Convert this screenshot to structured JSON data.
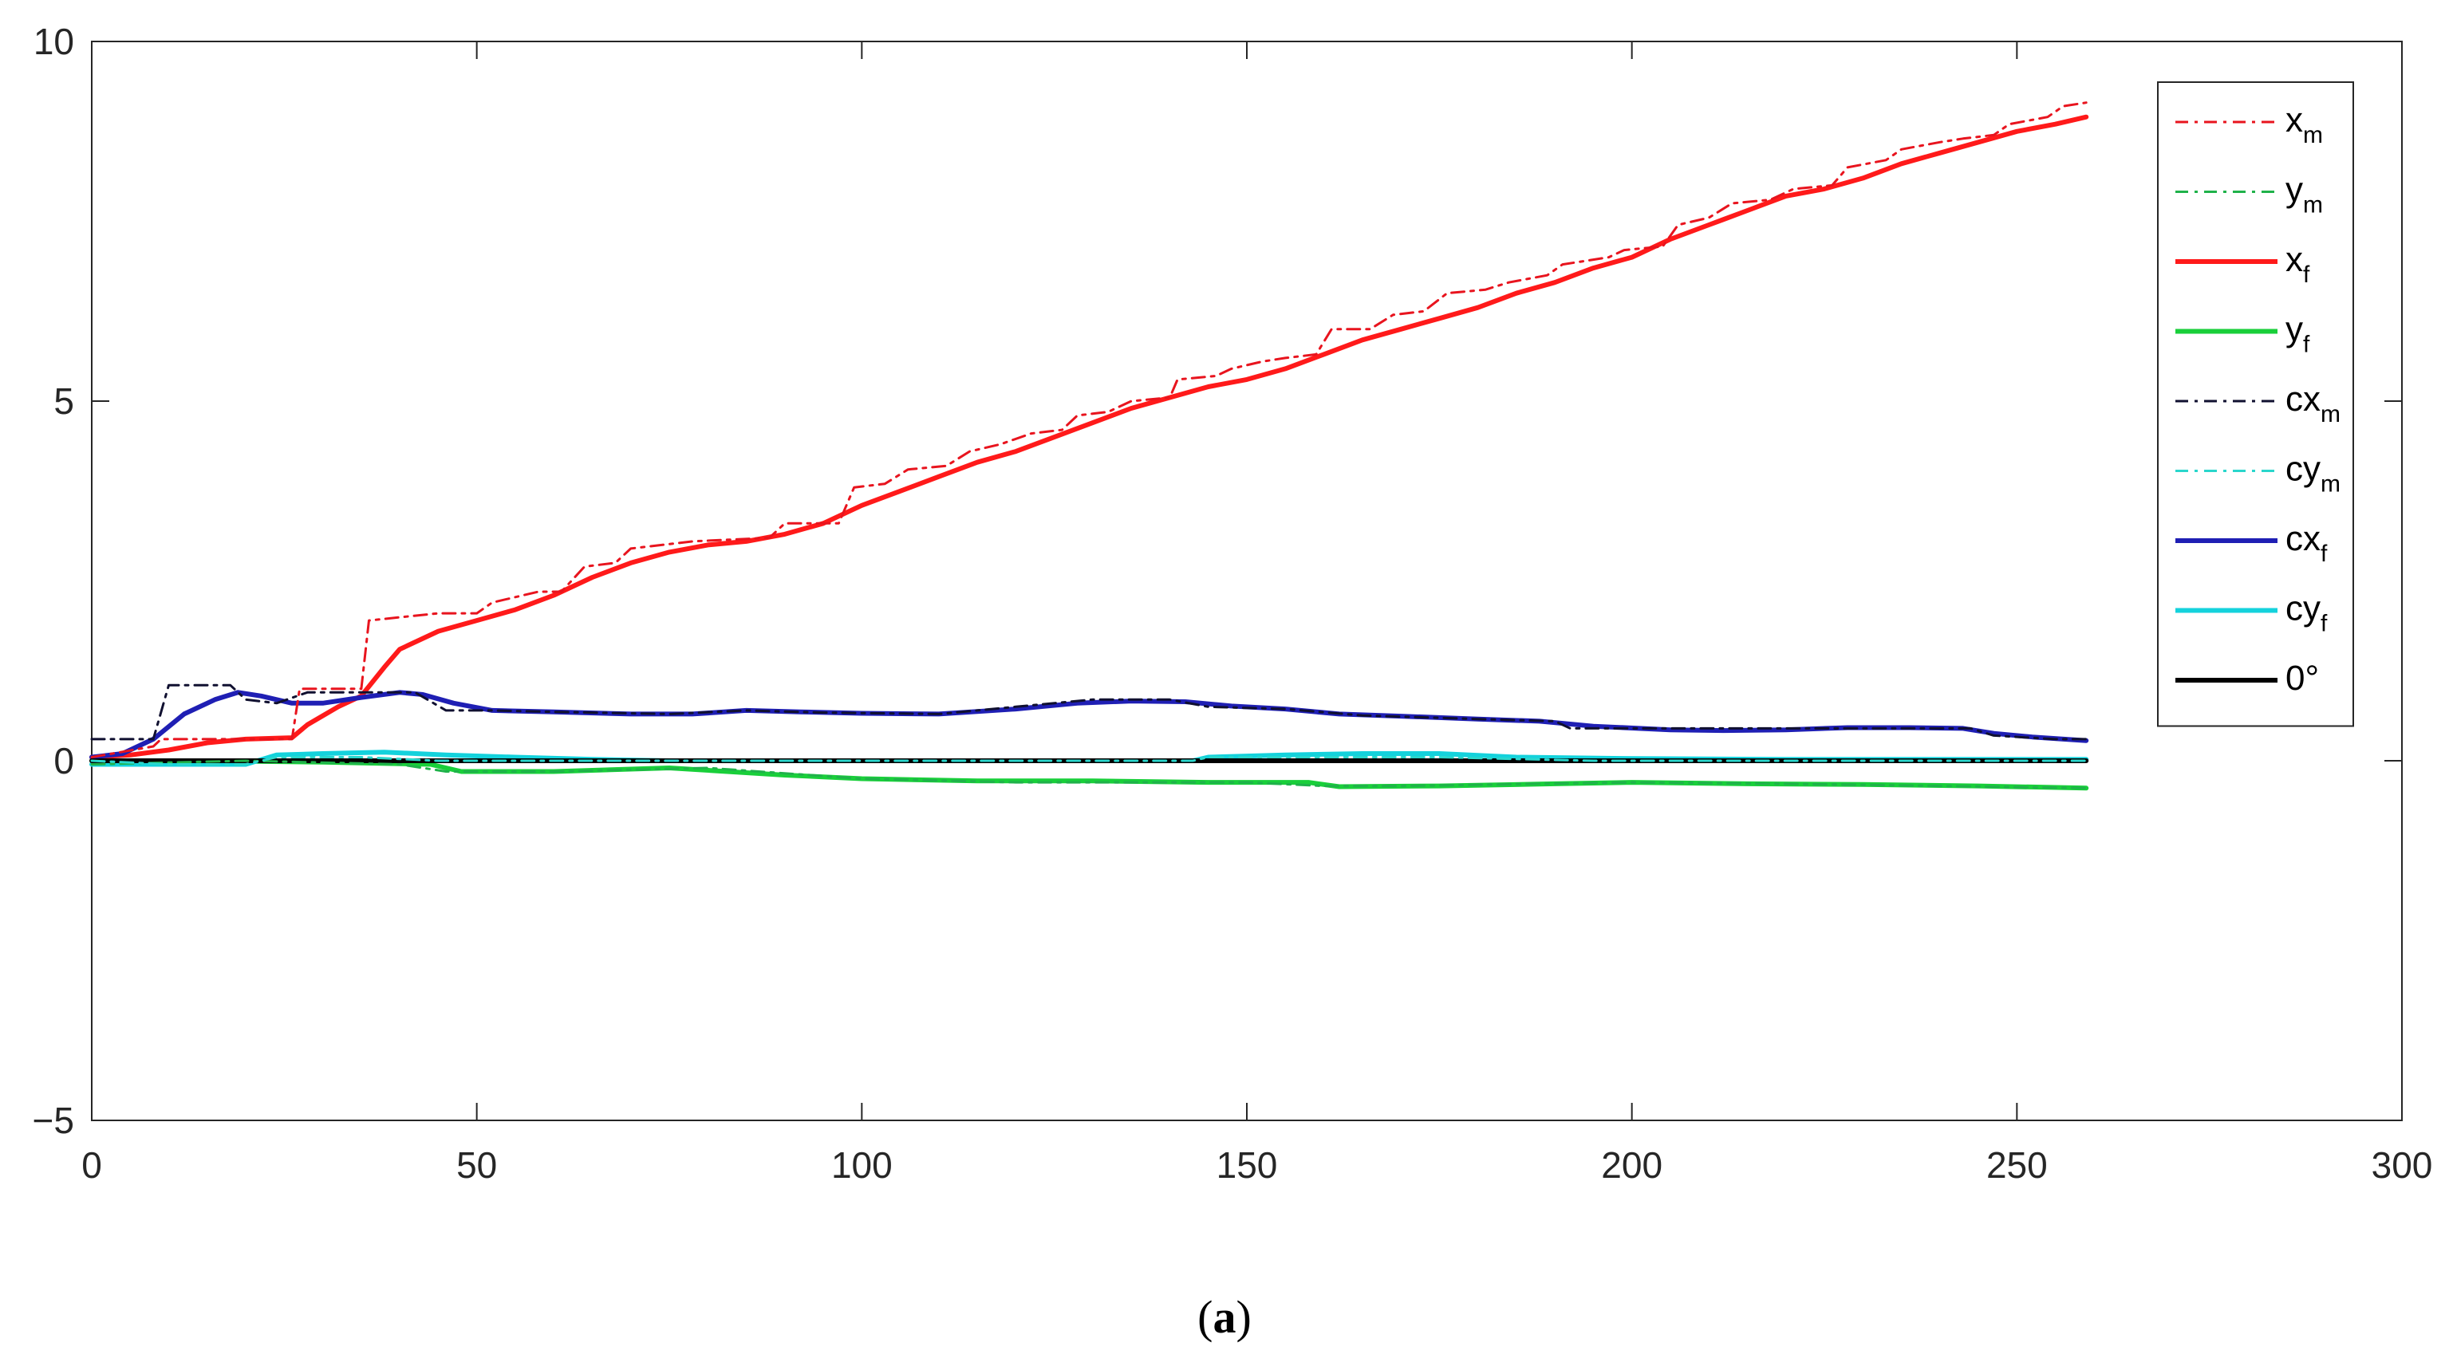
{
  "chart_data": {
    "type": "line",
    "xlim": [
      0,
      300
    ],
    "ylim": [
      -5,
      10
    ],
    "xticks": [
      0,
      50,
      100,
      150,
      200,
      250,
      300
    ],
    "yticks": [
      -5,
      0,
      5,
      10
    ],
    "grid": false,
    "legend_position": "top-right",
    "series": [
      {
        "name": "x",
        "subscript": "m",
        "color": "#e8141e",
        "style": "dashdot",
        "width": "thin",
        "points": [
          [
            0,
            0.05
          ],
          [
            8,
            0.2
          ],
          [
            9,
            0.3
          ],
          [
            18,
            0.3
          ],
          [
            26,
            0.3
          ],
          [
            27,
            1.0
          ],
          [
            35,
            1.0
          ],
          [
            36,
            1.95
          ],
          [
            45,
            2.05
          ],
          [
            50,
            2.05
          ],
          [
            52,
            2.2
          ],
          [
            58,
            2.35
          ],
          [
            61,
            2.35
          ],
          [
            64,
            2.7
          ],
          [
            68,
            2.75
          ],
          [
            70,
            2.95
          ],
          [
            78,
            3.05
          ],
          [
            88,
            3.1
          ],
          [
            90,
            3.3
          ],
          [
            97,
            3.3
          ],
          [
            99,
            3.8
          ],
          [
            103,
            3.85
          ],
          [
            106,
            4.05
          ],
          [
            111,
            4.1
          ],
          [
            114,
            4.3
          ],
          [
            118,
            4.4
          ],
          [
            122,
            4.55
          ],
          [
            126,
            4.6
          ],
          [
            128,
            4.8
          ],
          [
            132,
            4.85
          ],
          [
            135,
            5.0
          ],
          [
            140,
            5.05
          ],
          [
            141,
            5.3
          ],
          [
            146,
            5.35
          ],
          [
            148,
            5.45
          ],
          [
            152,
            5.55
          ],
          [
            155,
            5.6
          ],
          [
            159,
            5.65
          ],
          [
            161,
            6.0
          ],
          [
            166,
            6.0
          ],
          [
            169,
            6.2
          ],
          [
            173,
            6.25
          ],
          [
            176,
            6.5
          ],
          [
            181,
            6.55
          ],
          [
            184,
            6.65
          ],
          [
            189,
            6.75
          ],
          [
            191,
            6.9
          ],
          [
            197,
            7.0
          ],
          [
            199,
            7.1
          ],
          [
            204,
            7.15
          ],
          [
            206,
            7.45
          ],
          [
            210,
            7.55
          ],
          [
            213,
            7.75
          ],
          [
            218,
            7.8
          ],
          [
            221,
            7.95
          ],
          [
            226,
            8.0
          ],
          [
            228,
            8.25
          ],
          [
            233,
            8.35
          ],
          [
            235,
            8.5
          ],
          [
            240,
            8.6
          ],
          [
            243,
            8.65
          ],
          [
            247,
            8.7
          ],
          [
            249,
            8.85
          ],
          [
            254,
            8.95
          ],
          [
            256,
            9.1
          ],
          [
            259,
            9.15
          ]
        ]
      },
      {
        "name": "y",
        "subscript": "m",
        "color": "#1fb24a",
        "style": "dashdot",
        "width": "thin",
        "points": [
          [
            0,
            -0.05
          ],
          [
            20,
            0.0
          ],
          [
            40,
            -0.05
          ],
          [
            46,
            -0.15
          ],
          [
            60,
            -0.15
          ],
          [
            80,
            -0.1
          ],
          [
            100,
            -0.25
          ],
          [
            120,
            -0.3
          ],
          [
            150,
            -0.3
          ],
          [
            160,
            -0.35
          ],
          [
            170,
            -0.35
          ],
          [
            200,
            -0.3
          ],
          [
            220,
            -0.32
          ],
          [
            240,
            -0.35
          ],
          [
            259,
            -0.38
          ]
        ]
      },
      {
        "name": "x",
        "subscript": "f",
        "color": "#ff1a1a",
        "style": "solid",
        "width": "thick",
        "points": [
          [
            0,
            0.05
          ],
          [
            5,
            0.08
          ],
          [
            10,
            0.15
          ],
          [
            15,
            0.25
          ],
          [
            20,
            0.3
          ],
          [
            26,
            0.32
          ],
          [
            28,
            0.5
          ],
          [
            32,
            0.75
          ],
          [
            35,
            0.9
          ],
          [
            38,
            1.3
          ],
          [
            40,
            1.55
          ],
          [
            45,
            1.8
          ],
          [
            50,
            1.95
          ],
          [
            55,
            2.1
          ],
          [
            60,
            2.3
          ],
          [
            65,
            2.55
          ],
          [
            70,
            2.75
          ],
          [
            75,
            2.9
          ],
          [
            80,
            3.0
          ],
          [
            85,
            3.05
          ],
          [
            90,
            3.15
          ],
          [
            95,
            3.3
          ],
          [
            100,
            3.55
          ],
          [
            105,
            3.75
          ],
          [
            110,
            3.95
          ],
          [
            115,
            4.15
          ],
          [
            120,
            4.3
          ],
          [
            125,
            4.5
          ],
          [
            130,
            4.7
          ],
          [
            135,
            4.9
          ],
          [
            140,
            5.05
          ],
          [
            145,
            5.2
          ],
          [
            150,
            5.3
          ],
          [
            155,
            5.45
          ],
          [
            160,
            5.65
          ],
          [
            165,
            5.85
          ],
          [
            170,
            6.0
          ],
          [
            175,
            6.15
          ],
          [
            180,
            6.3
          ],
          [
            185,
            6.5
          ],
          [
            190,
            6.65
          ],
          [
            195,
            6.85
          ],
          [
            200,
            7.0
          ],
          [
            205,
            7.25
          ],
          [
            210,
            7.45
          ],
          [
            215,
            7.65
          ],
          [
            220,
            7.85
          ],
          [
            225,
            7.95
          ],
          [
            230,
            8.1
          ],
          [
            235,
            8.3
          ],
          [
            240,
            8.45
          ],
          [
            245,
            8.6
          ],
          [
            250,
            8.75
          ],
          [
            255,
            8.85
          ],
          [
            259,
            8.95
          ]
        ]
      },
      {
        "name": "y",
        "subscript": "f",
        "color": "#19cf3a",
        "style": "solid",
        "width": "thick",
        "points": [
          [
            0,
            0.0
          ],
          [
            15,
            0.0
          ],
          [
            30,
            -0.02
          ],
          [
            44,
            -0.05
          ],
          [
            48,
            -0.15
          ],
          [
            60,
            -0.15
          ],
          [
            75,
            -0.1
          ],
          [
            90,
            -0.2
          ],
          [
            100,
            -0.25
          ],
          [
            115,
            -0.28
          ],
          [
            130,
            -0.28
          ],
          [
            145,
            -0.3
          ],
          [
            158,
            -0.3
          ],
          [
            162,
            -0.36
          ],
          [
            175,
            -0.35
          ],
          [
            190,
            -0.32
          ],
          [
            200,
            -0.3
          ],
          [
            215,
            -0.32
          ],
          [
            230,
            -0.33
          ],
          [
            245,
            -0.35
          ],
          [
            259,
            -0.38
          ]
        ]
      },
      {
        "name": "cx",
        "subscript": "m",
        "color": "#101030",
        "style": "dashdot",
        "width": "thin",
        "points": [
          [
            0,
            0.3
          ],
          [
            8,
            0.3
          ],
          [
            10,
            1.05
          ],
          [
            18,
            1.05
          ],
          [
            20,
            0.85
          ],
          [
            24,
            0.8
          ],
          [
            28,
            0.95
          ],
          [
            35,
            0.95
          ],
          [
            42,
            0.95
          ],
          [
            46,
            0.7
          ],
          [
            52,
            0.7
          ],
          [
            60,
            0.68
          ],
          [
            75,
            0.65
          ],
          [
            85,
            0.7
          ],
          [
            95,
            0.67
          ],
          [
            110,
            0.65
          ],
          [
            120,
            0.75
          ],
          [
            130,
            0.85
          ],
          [
            140,
            0.85
          ],
          [
            145,
            0.75
          ],
          [
            155,
            0.72
          ],
          [
            165,
            0.63
          ],
          [
            180,
            0.58
          ],
          [
            190,
            0.55
          ],
          [
            192,
            0.45
          ],
          [
            205,
            0.45
          ],
          [
            215,
            0.45
          ],
          [
            230,
            0.45
          ],
          [
            244,
            0.45
          ],
          [
            247,
            0.35
          ],
          [
            255,
            0.3
          ],
          [
            259,
            0.3
          ]
        ]
      },
      {
        "name": "cy",
        "subscript": "m",
        "color": "#2ad6cc",
        "style": "dashdot",
        "width": "thin",
        "points": [
          [
            0,
            0.0
          ],
          [
            10,
            -0.05
          ],
          [
            20,
            -0.05
          ],
          [
            24,
            0.05
          ],
          [
            35,
            0.05
          ],
          [
            45,
            0.0
          ],
          [
            60,
            0.0
          ],
          [
            80,
            0.0
          ],
          [
            100,
            0.0
          ],
          [
            120,
            0.0
          ],
          [
            143,
            0.0
          ],
          [
            145,
            0.05
          ],
          [
            160,
            0.05
          ],
          [
            175,
            0.05
          ],
          [
            195,
            0.0
          ],
          [
            220,
            0.0
          ],
          [
            245,
            0.0
          ],
          [
            259,
            0.0
          ]
        ]
      },
      {
        "name": "cx",
        "subscript": "f",
        "color": "#1f1fb4",
        "style": "solid",
        "width": "thick",
        "points": [
          [
            0,
            0.05
          ],
          [
            4,
            0.1
          ],
          [
            8,
            0.3
          ],
          [
            12,
            0.65
          ],
          [
            16,
            0.85
          ],
          [
            19,
            0.95
          ],
          [
            22,
            0.9
          ],
          [
            26,
            0.8
          ],
          [
            30,
            0.8
          ],
          [
            35,
            0.88
          ],
          [
            40,
            0.95
          ],
          [
            43,
            0.92
          ],
          [
            47,
            0.8
          ],
          [
            52,
            0.7
          ],
          [
            60,
            0.68
          ],
          [
            70,
            0.65
          ],
          [
            78,
            0.65
          ],
          [
            85,
            0.7
          ],
          [
            92,
            0.68
          ],
          [
            100,
            0.66
          ],
          [
            110,
            0.65
          ],
          [
            120,
            0.72
          ],
          [
            128,
            0.8
          ],
          [
            135,
            0.83
          ],
          [
            142,
            0.82
          ],
          [
            148,
            0.76
          ],
          [
            155,
            0.72
          ],
          [
            162,
            0.65
          ],
          [
            170,
            0.62
          ],
          [
            180,
            0.58
          ],
          [
            188,
            0.55
          ],
          [
            195,
            0.48
          ],
          [
            205,
            0.43
          ],
          [
            212,
            0.42
          ],
          [
            220,
            0.43
          ],
          [
            228,
            0.46
          ],
          [
            236,
            0.46
          ],
          [
            243,
            0.45
          ],
          [
            247,
            0.38
          ],
          [
            252,
            0.33
          ],
          [
            259,
            0.28
          ]
        ]
      },
      {
        "name": "cy",
        "subscript": "f",
        "color": "#14d2dc",
        "style": "solid",
        "width": "thick",
        "points": [
          [
            0,
            -0.05
          ],
          [
            10,
            -0.05
          ],
          [
            20,
            -0.05
          ],
          [
            24,
            0.08
          ],
          [
            30,
            0.1
          ],
          [
            38,
            0.12
          ],
          [
            46,
            0.08
          ],
          [
            55,
            0.05
          ],
          [
            65,
            0.02
          ],
          [
            75,
            0.0
          ],
          [
            90,
            0.0
          ],
          [
            110,
            0.0
          ],
          [
            130,
            0.0
          ],
          [
            143,
            0.0
          ],
          [
            145,
            0.05
          ],
          [
            155,
            0.08
          ],
          [
            165,
            0.1
          ],
          [
            175,
            0.1
          ],
          [
            185,
            0.05
          ],
          [
            200,
            0.03
          ],
          [
            220,
            0.02
          ],
          [
            240,
            0.02
          ],
          [
            259,
            0.02
          ]
        ]
      },
      {
        "name": "0°",
        "subscript": "",
        "color": "#000000",
        "style": "solid",
        "width": "thick",
        "points": [
          [
            0,
            0
          ],
          [
            259,
            0
          ]
        ]
      }
    ]
  },
  "caption": {
    "open": "(",
    "letter": "a",
    "close": ")"
  }
}
